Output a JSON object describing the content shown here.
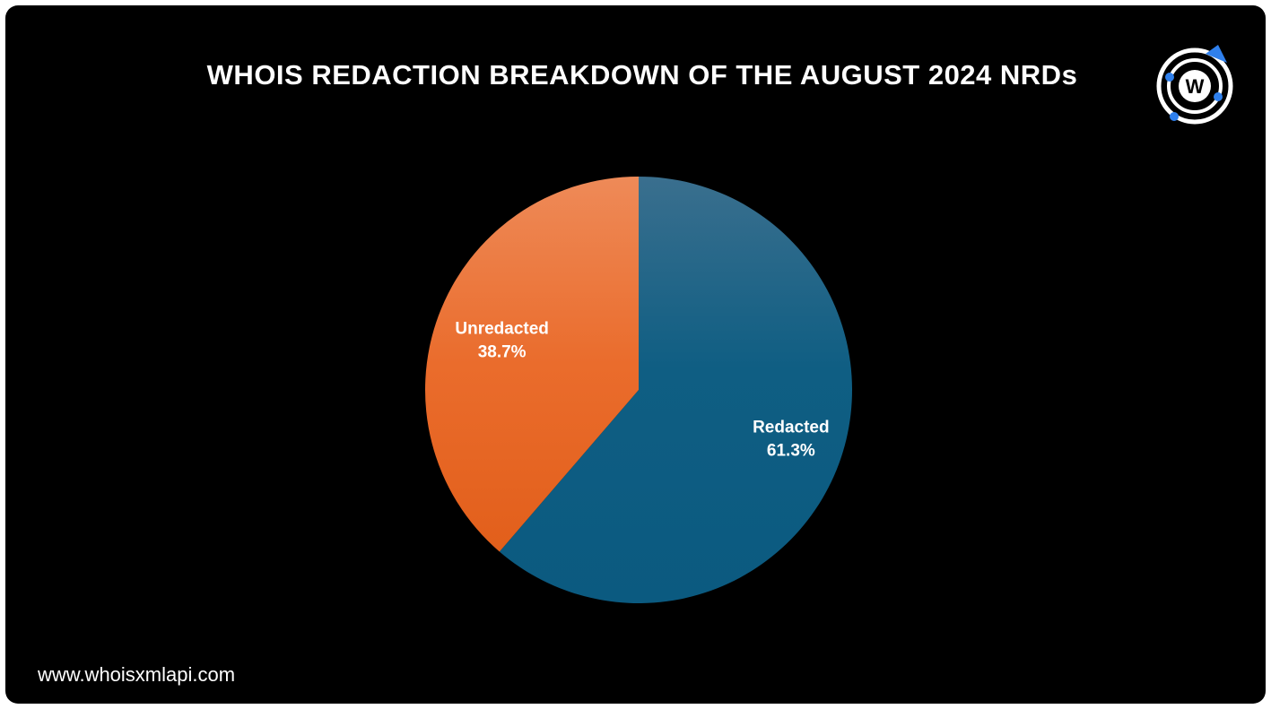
{
  "header": {
    "title": "WHOIS REDACTION BREAKDOWN OF THE AUGUST 2024 NRDs"
  },
  "footer": {
    "website": "www.whoisxmlapi.com"
  },
  "logo": {
    "letter": "W",
    "icon": "whoisxmlapi-logo-icon"
  },
  "colors": {
    "background": "#000000",
    "text": "#ffffff",
    "redacted_top": "#3a6f8e",
    "redacted_bottom": "#0b5a80",
    "unredacted_top": "#ee8a58",
    "unredacted_bottom": "#e25f1b",
    "logo_blue": "#2f80ed"
  },
  "chart_data": {
    "type": "pie",
    "title": "WHOIS REDACTION BREAKDOWN OF THE AUGUST 2024 NRDs",
    "slices": [
      {
        "label": "Redacted",
        "value": 61.3,
        "display": "61.3%",
        "color": "#0b5a80"
      },
      {
        "label": "Unredacted",
        "value": 38.7,
        "display": "38.7%",
        "color": "#e25f1b"
      }
    ],
    "start_angle": "12 o'clock",
    "direction": "clockwise",
    "legend": "none"
  }
}
